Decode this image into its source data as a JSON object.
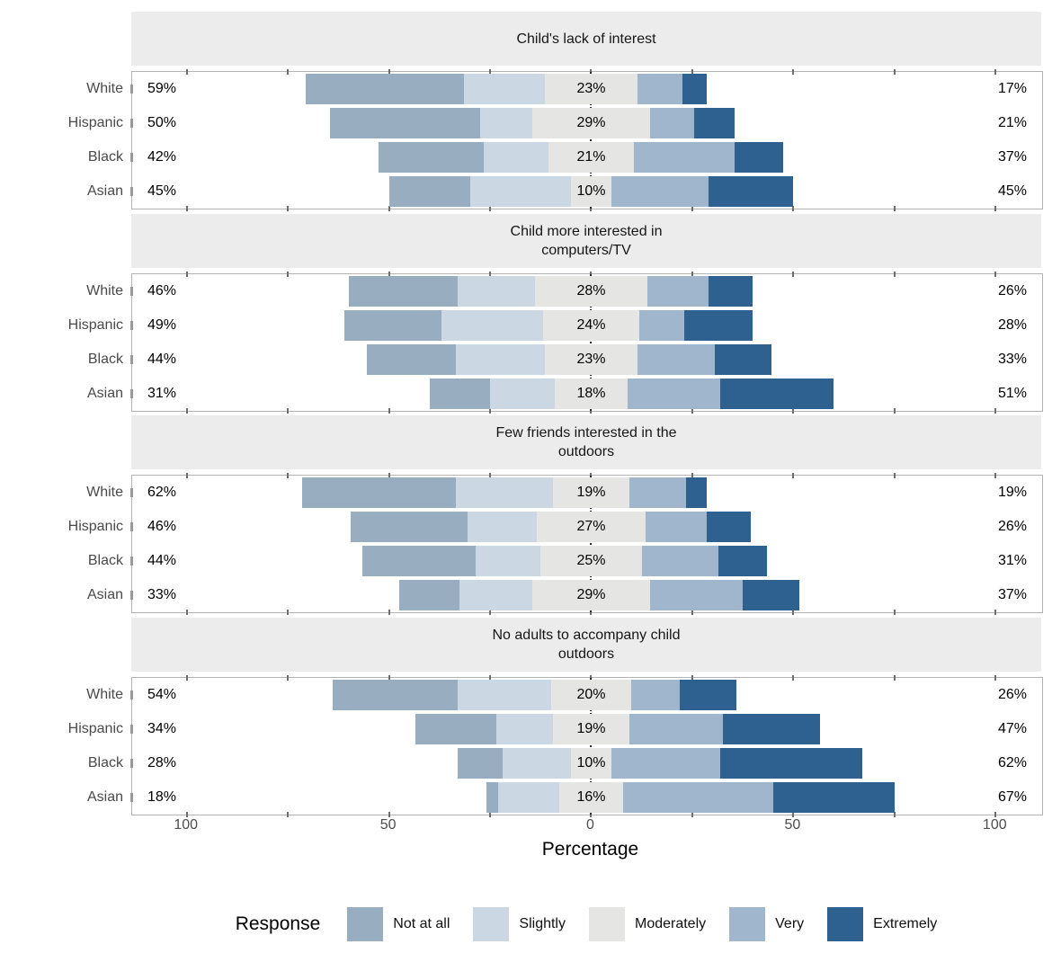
{
  "colors": {
    "not_at_all": "#99ADC1",
    "slightly": "#CBD7E2",
    "moderately": "#E5E5E3",
    "very": "#A0B6CC",
    "extremely": "#2E6190",
    "panel_strip_bg": "#ECECEC",
    "panel_border": "#B3B3B3",
    "axis_text": "#4D4D4D",
    "category_text": "#4A4A4A",
    "zero_line": "#2B2B2B"
  },
  "chart_data": {
    "type": "bar",
    "subtype": "diverging-stacked-likert",
    "xlabel": "Percentage",
    "xlim": [
      -113.5,
      111.5
    ],
    "x_ticks": [
      -100,
      -50,
      0,
      50,
      100
    ],
    "x_tick_labels": [
      "100",
      "50",
      "0",
      "50",
      "100"
    ],
    "x_minor_tick_step": 25,
    "grid": false,
    "segment_keys": [
      "not_at_all",
      "slightly",
      "moderately",
      "very",
      "extremely"
    ],
    "legend": {
      "title": "Response",
      "position": "bottom",
      "entries": [
        {
          "key": "not_at_all",
          "label": "Not at all"
        },
        {
          "key": "slightly",
          "label": "Slightly"
        },
        {
          "key": "moderately",
          "label": "Moderately"
        },
        {
          "key": "very",
          "label": "Very"
        },
        {
          "key": "extremely",
          "label": "Extremely"
        }
      ]
    },
    "categories": [
      "White",
      "Hispanic",
      "Black",
      "Asian"
    ],
    "panels": [
      {
        "title": "Child's lack of interest",
        "title_lines": [
          "Child's lack of interest"
        ],
        "rows": [
          {
            "category": "White",
            "left_label": "59%",
            "mid_label": "23%",
            "right_label": "17%",
            "values": {
              "not_at_all": 39,
              "slightly": 20,
              "moderately": 23,
              "very": 11,
              "extremely": 6
            }
          },
          {
            "category": "Hispanic",
            "left_label": "50%",
            "mid_label": "29%",
            "right_label": "21%",
            "values": {
              "not_at_all": 37,
              "slightly": 13,
              "moderately": 29,
              "very": 11,
              "extremely": 10
            }
          },
          {
            "category": "Black",
            "left_label": "42%",
            "mid_label": "21%",
            "right_label": "37%",
            "values": {
              "not_at_all": 26,
              "slightly": 16,
              "moderately": 21,
              "very": 25,
              "extremely": 12
            }
          },
          {
            "category": "Asian",
            "left_label": "45%",
            "mid_label": "10%",
            "right_label": "45%",
            "values": {
              "not_at_all": 20,
              "slightly": 25,
              "moderately": 10,
              "very": 24,
              "extremely": 21
            }
          }
        ]
      },
      {
        "title": "Child more interested in computers/TV",
        "title_lines": [
          "Child more interested in",
          "computers/TV"
        ],
        "rows": [
          {
            "category": "White",
            "left_label": "46%",
            "mid_label": "28%",
            "right_label": "26%",
            "values": {
              "not_at_all": 27,
              "slightly": 19,
              "moderately": 28,
              "very": 15,
              "extremely": 11
            }
          },
          {
            "category": "Hispanic",
            "left_label": "49%",
            "mid_label": "24%",
            "right_label": "28%",
            "values": {
              "not_at_all": 24,
              "slightly": 25,
              "moderately": 24,
              "very": 11,
              "extremely": 17
            }
          },
          {
            "category": "Black",
            "left_label": "44%",
            "mid_label": "23%",
            "right_label": "33%",
            "values": {
              "not_at_all": 22,
              "slightly": 22,
              "moderately": 23,
              "very": 19,
              "extremely": 14
            }
          },
          {
            "category": "Asian",
            "left_label": "31%",
            "mid_label": "18%",
            "right_label": "51%",
            "values": {
              "not_at_all": 15,
              "slightly": 16,
              "moderately": 18,
              "very": 23,
              "extremely": 28
            }
          }
        ]
      },
      {
        "title": "Few friends interested in the outdoors",
        "title_lines": [
          "Few friends interested in the",
          "outdoors"
        ],
        "rows": [
          {
            "category": "White",
            "left_label": "62%",
            "mid_label": "19%",
            "right_label": "19%",
            "values": {
              "not_at_all": 38,
              "slightly": 24,
              "moderately": 19,
              "very": 14,
              "extremely": 5
            }
          },
          {
            "category": "Hispanic",
            "left_label": "46%",
            "mid_label": "27%",
            "right_label": "26%",
            "values": {
              "not_at_all": 29,
              "slightly": 17,
              "moderately": 27,
              "very": 15,
              "extremely": 11
            }
          },
          {
            "category": "Black",
            "left_label": "44%",
            "mid_label": "25%",
            "right_label": "31%",
            "values": {
              "not_at_all": 28,
              "slightly": 16,
              "moderately": 25,
              "very": 19,
              "extremely": 12
            }
          },
          {
            "category": "Asian",
            "left_label": "33%",
            "mid_label": "29%",
            "right_label": "37%",
            "values": {
              "not_at_all": 15,
              "slightly": 18,
              "moderately": 29,
              "very": 23,
              "extremely": 14
            }
          }
        ]
      },
      {
        "title": "No adults to accompany child outdoors",
        "title_lines": [
          "No adults to accompany child",
          "outdoors"
        ],
        "rows": [
          {
            "category": "White",
            "left_label": "54%",
            "mid_label": "20%",
            "right_label": "26%",
            "values": {
              "not_at_all": 31,
              "slightly": 23,
              "moderately": 20,
              "very": 12,
              "extremely": 14
            }
          },
          {
            "category": "Hispanic",
            "left_label": "34%",
            "mid_label": "19%",
            "right_label": "47%",
            "values": {
              "not_at_all": 20,
              "slightly": 14,
              "moderately": 19,
              "very": 23,
              "extremely": 24
            }
          },
          {
            "category": "Black",
            "left_label": "28%",
            "mid_label": "10%",
            "right_label": "62%",
            "values": {
              "not_at_all": 11,
              "slightly": 17,
              "moderately": 10,
              "very": 27,
              "extremely": 35
            }
          },
          {
            "category": "Asian",
            "left_label": "18%",
            "mid_label": "16%",
            "right_label": "67%",
            "values": {
              "not_at_all": 3,
              "slightly": 15,
              "moderately": 16,
              "very": 37,
              "extremely": 30
            }
          }
        ]
      }
    ]
  }
}
